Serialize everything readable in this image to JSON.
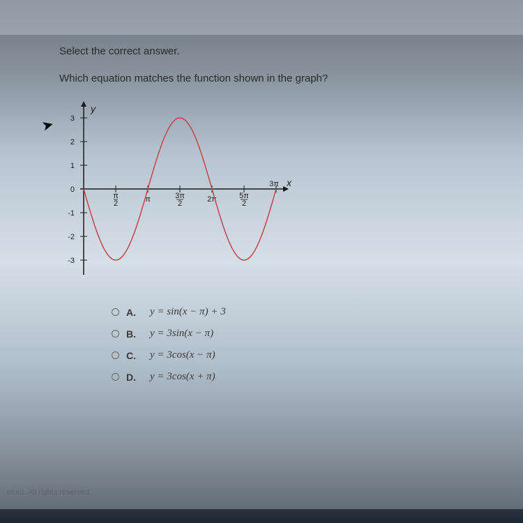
{
  "instruction": "Select the correct answer.",
  "question": "Which equation matches the function shown in the graph?",
  "graph": {
    "type": "line",
    "curve_color": "#c44545",
    "axis_color": "#1a1a1a",
    "label_fontsize": 11,
    "y_axis": {
      "label": "y",
      "min": -3,
      "max": 3,
      "ticks": [
        -3,
        -2,
        -1,
        0,
        1,
        2,
        3
      ]
    },
    "x_axis": {
      "label": "x",
      "min": 0,
      "max_label": "3π",
      "tick_labels": [
        "π/2",
        "π",
        "3π/2",
        "2π",
        "5π/2",
        "3π"
      ]
    },
    "function": "3sin(x - π)",
    "amplitude": 3,
    "phase_shift_pi": 1,
    "period_pi": 2
  },
  "answers": {
    "a": {
      "letter": "A.",
      "equation": "y  =  sin(x − π) + 3"
    },
    "b": {
      "letter": "B.",
      "equation": "y  =  3sin(x − π)"
    },
    "c": {
      "letter": "C.",
      "equation": "y  =  3cos(x − π)"
    },
    "d": {
      "letter": "D.",
      "equation": "y  =  3cos(x + π)"
    }
  },
  "footer": "ntum. All rights reserved."
}
